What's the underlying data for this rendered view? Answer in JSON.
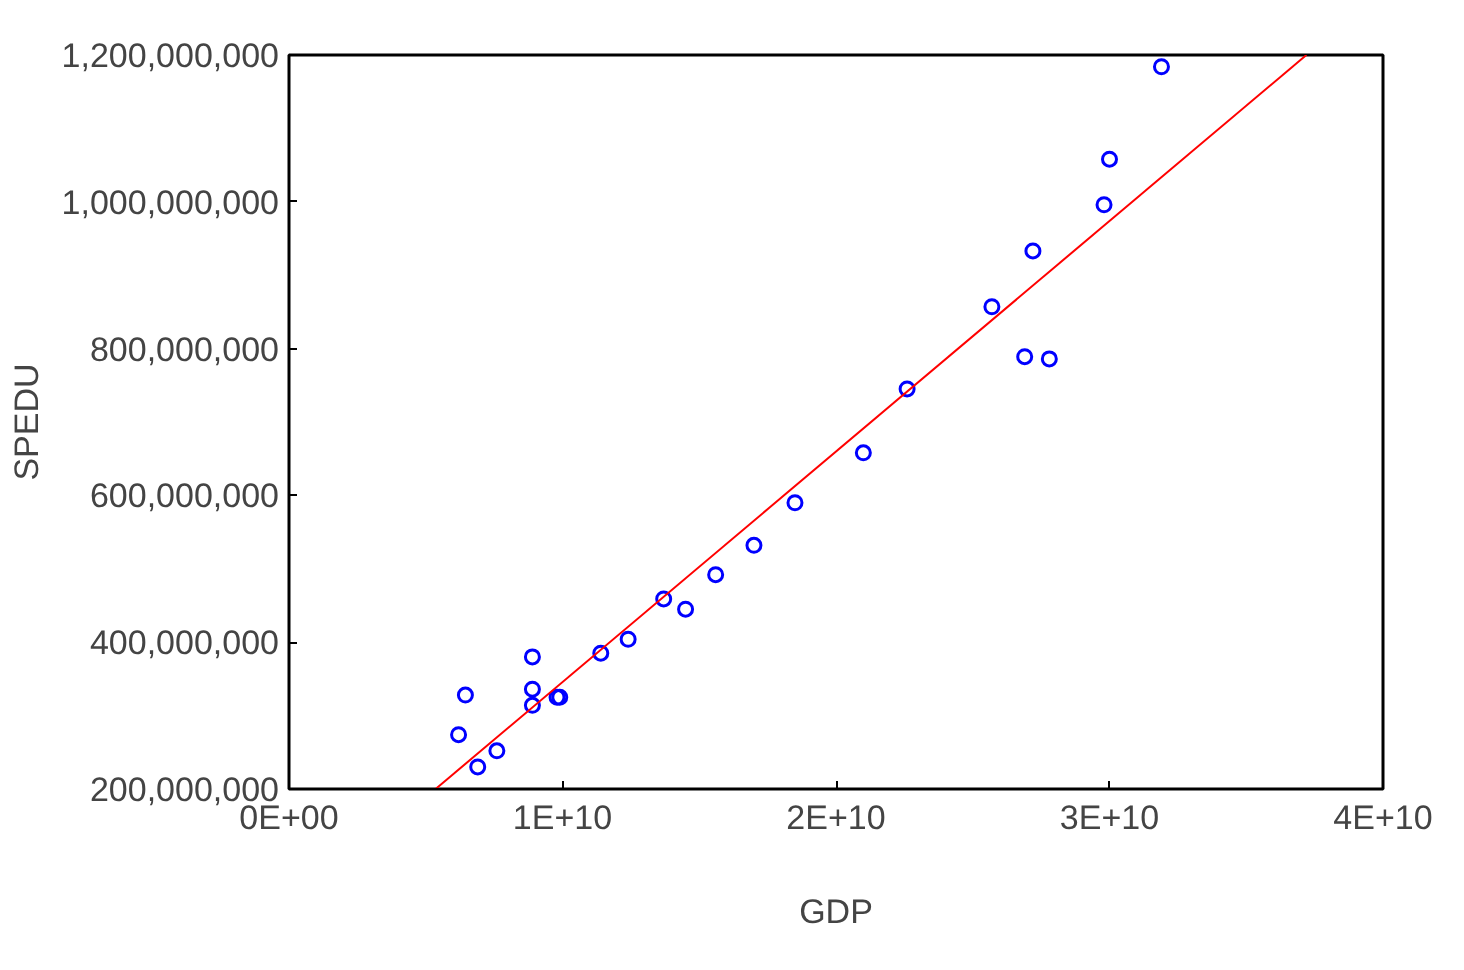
{
  "chart_data": {
    "type": "scatter",
    "xlabel": "GDP",
    "ylabel": "SPEDU",
    "xlim": [
      0,
      40000000000
    ],
    "ylim": [
      200000000,
      1200000000
    ],
    "xticks": [
      {
        "value": 0,
        "label": "0E+00"
      },
      {
        "value": 10000000000,
        "label": "1E+10"
      },
      {
        "value": 20000000000,
        "label": "2E+10"
      },
      {
        "value": 30000000000,
        "label": "3E+10"
      },
      {
        "value": 40000000000,
        "label": "4E+10"
      }
    ],
    "yticks": [
      {
        "value": 200000000,
        "label": "200,000,000"
      },
      {
        "value": 400000000,
        "label": "400,000,000"
      },
      {
        "value": 600000000,
        "label": "600,000,000"
      },
      {
        "value": 800000000,
        "label": "800,000,000"
      },
      {
        "value": 1000000000,
        "label": "1,000,000,000"
      },
      {
        "value": 1200000000,
        "label": "1,200,000,000"
      }
    ],
    "grid": false,
    "series": [
      {
        "color": "#0000ff",
        "marker": "circle",
        "x": [
          6200000000,
          6450000000,
          6900000000,
          7600000000,
          8900000000,
          8900000000,
          8900000000,
          9800000000,
          9900000000,
          11400000000,
          12400000000,
          13700000000,
          14500000000,
          15600000000,
          17000000000,
          18500000000,
          21000000000,
          22600000000,
          25700000000,
          26900000000,
          27800000000,
          27200000000,
          29800000000,
          30000000000,
          31900000000
        ],
        "values": [
          274000000,
          328000000,
          230000000,
          252000000,
          336000000,
          380000000,
          314000000,
          325000000,
          325000000,
          385000000,
          404000000,
          459000000,
          445000000,
          492000000,
          532000000,
          590000000,
          658000000,
          745000000,
          857000000,
          789000000,
          786000000,
          933000000,
          996000000,
          1058000000,
          1184000000
        ]
      },
      {
        "type": "line",
        "color": "#ff0000",
        "line_style": "solid",
        "x": [
          5360000000,
          37200000000
        ],
        "values": [
          200000000,
          1200000000
        ]
      }
    ]
  }
}
